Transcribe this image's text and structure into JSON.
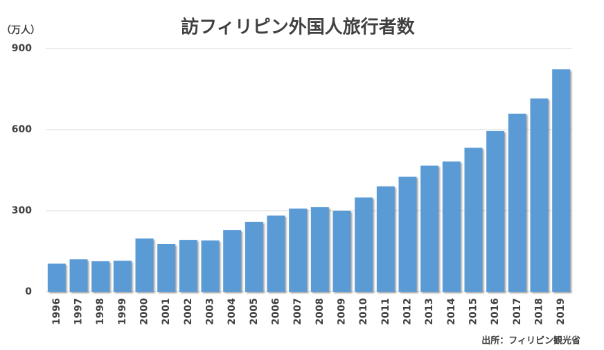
{
  "chart_data": {
    "type": "bar",
    "title": "訪フィリピン外国人旅行者数",
    "y_unit": "（万人）",
    "source": "出所：フィリピン観光省",
    "categories": [
      "1996",
      "1997",
      "1998",
      "1999",
      "2000",
      "2001",
      "2002",
      "2003",
      "2004",
      "2005",
      "2006",
      "2007",
      "2008",
      "2009",
      "2010",
      "2011",
      "2012",
      "2013",
      "2014",
      "2015",
      "2016",
      "2017",
      "2018",
      "2019"
    ],
    "values": [
      104,
      120,
      113,
      115,
      197,
      177,
      192,
      190,
      228,
      259,
      282,
      308,
      313,
      300,
      349,
      390,
      426,
      467,
      482,
      533,
      595,
      659,
      715,
      823
    ],
    "color": "#5b9bd5",
    "ylim": [
      0,
      900
    ],
    "yticks": [
      0,
      300,
      600,
      900
    ],
    "grid": true
  }
}
